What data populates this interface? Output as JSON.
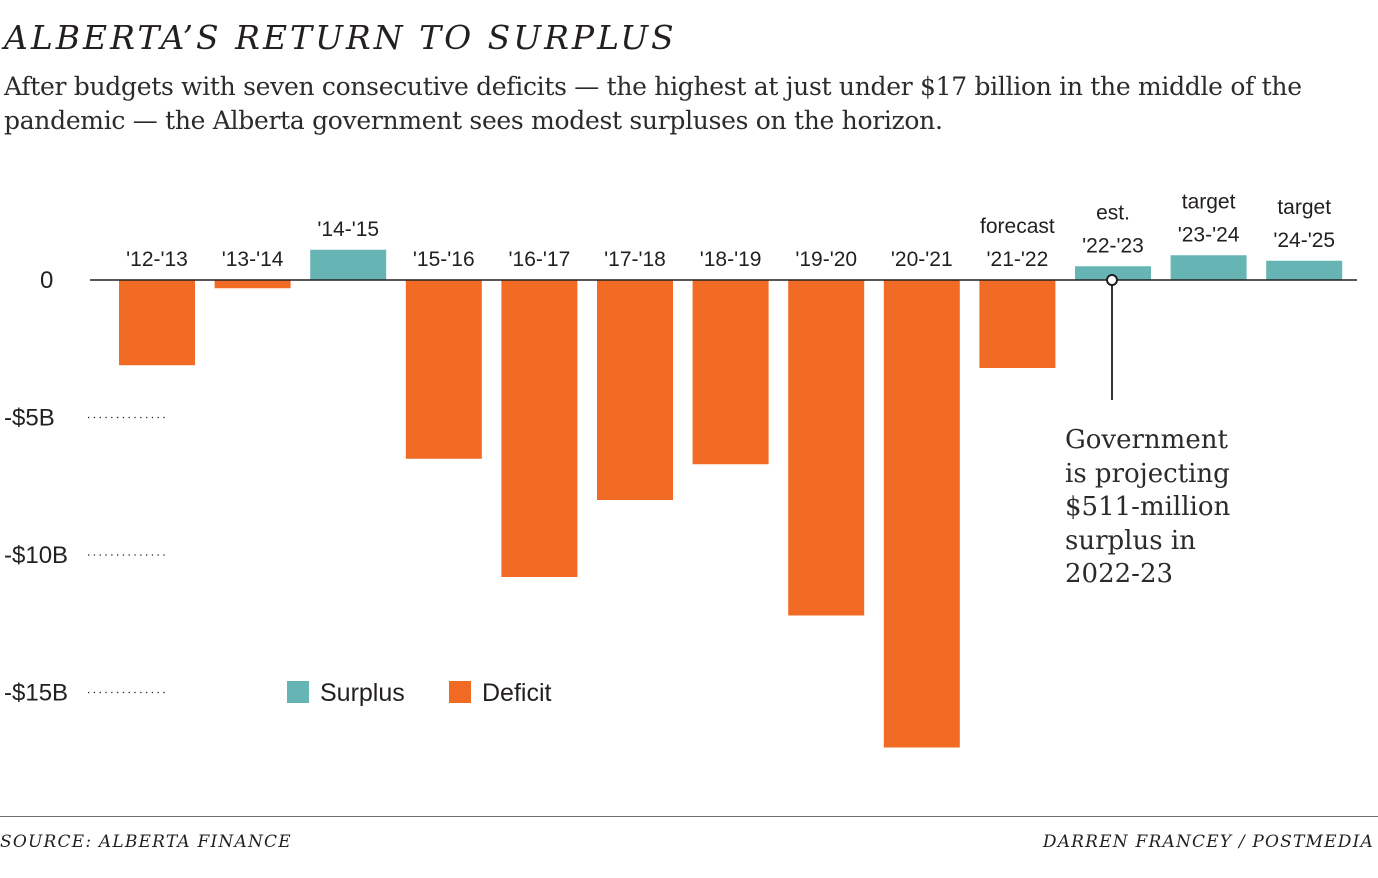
{
  "header": {
    "title": "ALBERTA’S RETURN TO SURPLUS",
    "subtitle": "After budgets with seven consecutive deficits — the highest at just under $17 billion in the middle of the pandemic — the Alberta government sees modest surpluses on the horizon."
  },
  "colors": {
    "surplus": "#66b5b4",
    "deficit": "#f26b25",
    "axis": "#231f20"
  },
  "chart_data": {
    "type": "bar",
    "title": "ALBERTA’S RETURN TO SURPLUS",
    "xlabel": "",
    "ylabel": "",
    "units": "billions of dollars",
    "ylim": [
      -17.5,
      1.5
    ],
    "y_ticks": [
      {
        "value": 0,
        "label": "0"
      },
      {
        "value": -5,
        "label": "-$5B"
      },
      {
        "value": -10,
        "label": "-$10B"
      },
      {
        "value": -15,
        "label": "-$15B"
      }
    ],
    "grid": "dotted tick leaders at -5, -10, -15",
    "categories": [
      "'12-'13",
      "'13-'14",
      "'14-'15",
      "'15-'16",
      "'16-'17",
      "'17-'18",
      "'18-'19",
      "'19-'20",
      "'20-'21",
      "'21-'22",
      "'22-'23",
      "'23-'24",
      "'24-'25"
    ],
    "category_prefixes": [
      "",
      "",
      "",
      "",
      "",
      "",
      "",
      "",
      "",
      "forecast",
      "est.",
      "target",
      "target"
    ],
    "values": [
      -3.1,
      -0.3,
      1.1,
      -6.5,
      -10.8,
      -8.0,
      -6.7,
      -12.2,
      -17.0,
      -3.2,
      0.5,
      0.9,
      0.7
    ],
    "legend": {
      "placement": "bottom-left",
      "items": [
        {
          "name": "Surplus",
          "color": "#66b5b4"
        },
        {
          "name": "Deficit",
          "color": "#f26b25"
        }
      ]
    },
    "annotation": {
      "category": "'22-'23",
      "text": "Government is projecting $511-million surplus in 2022-23"
    }
  },
  "annotation_lines": [
    "Government",
    "is projecting",
    "$511-million",
    "surplus in",
    "2022-23"
  ],
  "footer": {
    "source": "SOURCE: ALBERTA FINANCE",
    "credit": "DARREN FRANCEY / POSTMEDIA"
  }
}
